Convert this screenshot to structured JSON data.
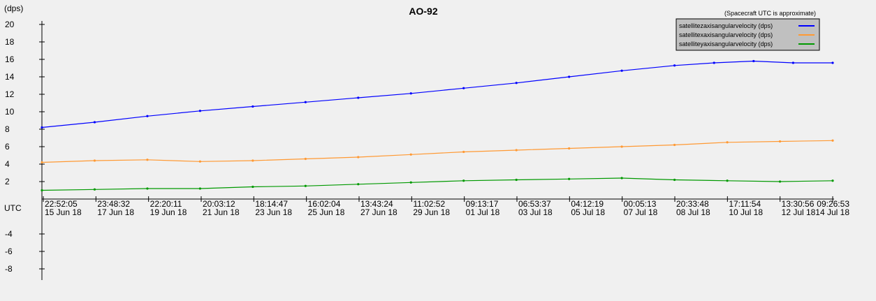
{
  "chart_data": {
    "type": "line",
    "title": "AO-92",
    "ylabel": "(dps)",
    "xlabel": "UTC",
    "note": "(Spacecraft UTC is approximate)",
    "ylim": [
      -9,
      22
    ],
    "xlim": [
      0,
      30
    ],
    "yticks": [
      20,
      18,
      16,
      14,
      12,
      10,
      8,
      6,
      4,
      2,
      -4,
      -6,
      -8
    ],
    "xticks": [
      {
        "time": "22:52:05",
        "date": "15 Jun 18"
      },
      {
        "time": "23:48:32",
        "date": "17 Jun 18"
      },
      {
        "time": "22:20:11",
        "date": "19 Jun 18"
      },
      {
        "time": "20:03:12",
        "date": "21 Jun 18"
      },
      {
        "time": "18:14:47",
        "date": "23 Jun 18"
      },
      {
        "time": "16:02:04",
        "date": "25 Jun 18"
      },
      {
        "time": "13:43:24",
        "date": "27 Jun 18"
      },
      {
        "time": "11:02:52",
        "date": "29 Jun 18"
      },
      {
        "time": "09:13:17",
        "date": "01 Jul 18"
      },
      {
        "time": "06:53:37",
        "date": "03 Jul 18"
      },
      {
        "time": "04:12:19",
        "date": "05 Jul 18"
      },
      {
        "time": "00:05:13",
        "date": "07 Jul 18"
      },
      {
        "time": "20:33:48",
        "date": "08 Jul 18"
      },
      {
        "time": "17:11:54",
        "date": "10 Jul 18"
      },
      {
        "time": "13:30:56",
        "date": "12 Jul 18"
      },
      {
        "time": "09:26:53",
        "date": "14 Jul 18"
      }
    ],
    "legend_position": "top-right",
    "grid": false,
    "series": [
      {
        "name": "satellitezaxisangularvelocity (dps)",
        "color": "#0000ff",
        "values": [
          [
            0,
            8.2
          ],
          [
            2,
            8.8
          ],
          [
            4,
            9.5
          ],
          [
            6,
            10.1
          ],
          [
            8,
            10.6
          ],
          [
            10,
            11.1
          ],
          [
            12,
            11.6
          ],
          [
            14,
            12.1
          ],
          [
            16,
            12.7
          ],
          [
            18,
            13.3
          ],
          [
            20,
            14.0
          ],
          [
            22,
            14.7
          ],
          [
            24,
            15.3
          ],
          [
            25.5,
            15.6
          ],
          [
            27,
            15.8
          ],
          [
            28.5,
            15.6
          ],
          [
            30,
            15.6
          ]
        ]
      },
      {
        "name": "satellitexaxisangularvelocity (dps)",
        "color": "#ff9933",
        "values": [
          [
            0,
            4.2
          ],
          [
            2,
            4.4
          ],
          [
            4,
            4.5
          ],
          [
            6,
            4.3
          ],
          [
            8,
            4.4
          ],
          [
            10,
            4.6
          ],
          [
            12,
            4.8
          ],
          [
            14,
            5.1
          ],
          [
            16,
            5.4
          ],
          [
            18,
            5.6
          ],
          [
            20,
            5.8
          ],
          [
            22,
            6.0
          ],
          [
            24,
            6.2
          ],
          [
            26,
            6.5
          ],
          [
            28,
            6.6
          ],
          [
            30,
            6.7
          ]
        ]
      },
      {
        "name": "satelliteyaxisangularvelocity (dps)",
        "color": "#009900",
        "values": [
          [
            0,
            1.0
          ],
          [
            2,
            1.1
          ],
          [
            4,
            1.2
          ],
          [
            6,
            1.2
          ],
          [
            8,
            1.4
          ],
          [
            10,
            1.5
          ],
          [
            12,
            1.7
          ],
          [
            14,
            1.9
          ],
          [
            16,
            2.1
          ],
          [
            18,
            2.2
          ],
          [
            20,
            2.3
          ],
          [
            22,
            2.4
          ],
          [
            24,
            2.2
          ],
          [
            26,
            2.1
          ],
          [
            28,
            2.0
          ],
          [
            30,
            2.1
          ]
        ]
      }
    ]
  }
}
